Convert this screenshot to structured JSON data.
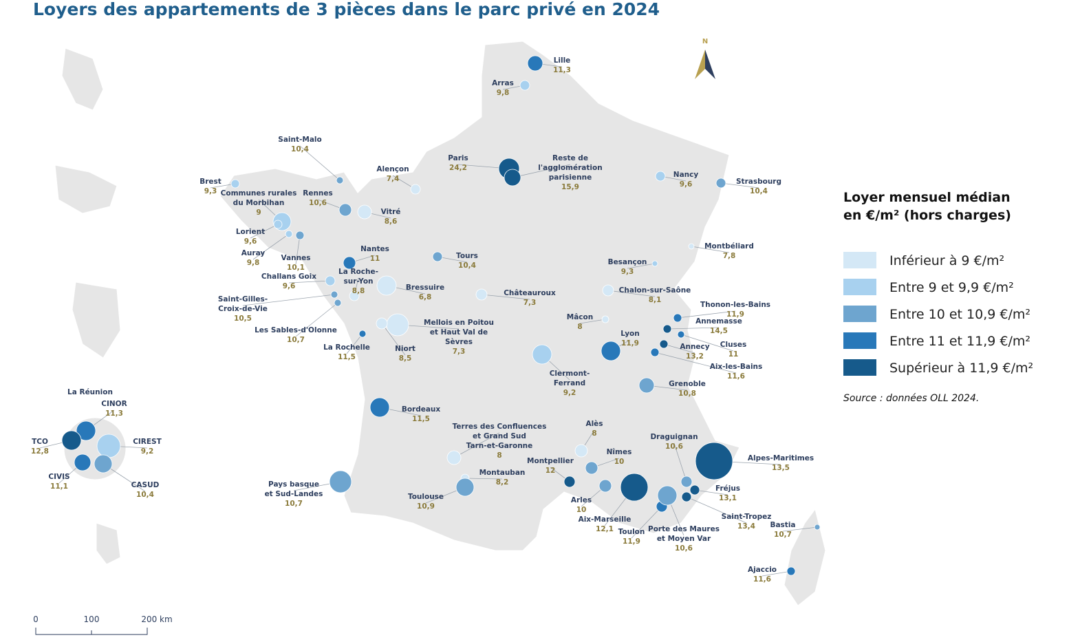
{
  "title": "Loyers des appartements de 3 pièces dans le parc privé en 2024",
  "legend": {
    "title": [
      "Loyer mensuel médian",
      "en €/m² (hors charges)"
    ],
    "items": [
      {
        "label": "Inférieur à 9 €/m²",
        "color": "#d4e8f6"
      },
      {
        "label": "Entre 9 et 9,9 €/m²",
        "color": "#a8d1ef"
      },
      {
        "label": "Entre 10 et 10,9 €/m²",
        "color": "#6ea5cf"
      },
      {
        "label": "Entre 11 et 11,9 €/m²",
        "color": "#2878b9"
      },
      {
        "label": "Supérieur à 11,9 €/m²",
        "color": "#165a8b"
      }
    ]
  },
  "source": "Source : données OLL 2024.",
  "north": "N",
  "scale": [
    "0",
    "100",
    "200 km"
  ],
  "reunion_title": "La Réunion",
  "places": [
    {
      "name": [
        "Lille"
      ],
      "value": "11,3",
      "class": 3
    },
    {
      "name": [
        "Arras"
      ],
      "value": "9,8",
      "class": 1
    },
    {
      "name": [
        "Saint-Malo"
      ],
      "value": "10,4",
      "class": 2
    },
    {
      "name": [
        "Alençon"
      ],
      "value": "7,4",
      "class": 0
    },
    {
      "name": [
        "Paris"
      ],
      "value": "24,2",
      "class": 4
    },
    {
      "name": [
        "Reste de",
        "l'agglomération",
        "parisienne"
      ],
      "value": "15,9",
      "class": 4
    },
    {
      "name": [
        "Nancy"
      ],
      "value": "9,6",
      "class": 1
    },
    {
      "name": [
        "Strasbourg"
      ],
      "value": "10,4",
      "class": 2
    },
    {
      "name": [
        "Brest"
      ],
      "value": "9,3",
      "class": 1
    },
    {
      "name": [
        "Communes rurales",
        "du Morbihan"
      ],
      "value": "9",
      "class": 1
    },
    {
      "name": [
        "Rennes"
      ],
      "value": "10,6",
      "class": 2
    },
    {
      "name": [
        "Vitré"
      ],
      "value": "8,6",
      "class": 0
    },
    {
      "name": [
        "Lorient"
      ],
      "value": "9,6",
      "class": 1
    },
    {
      "name": [
        "Auray"
      ],
      "value": "9,8",
      "class": 1
    },
    {
      "name": [
        "Vannes"
      ],
      "value": "10,1",
      "class": 2
    },
    {
      "name": [
        "Nantes"
      ],
      "value": "11",
      "class": 3
    },
    {
      "name": [
        "Tours"
      ],
      "value": "10,4",
      "class": 2
    },
    {
      "name": [
        "Montbéliard"
      ],
      "value": "7,8",
      "class": 0
    },
    {
      "name": [
        "Besançon"
      ],
      "value": "9,3",
      "class": 1
    },
    {
      "name": [
        "Challans Goix"
      ],
      "value": "9,6",
      "class": 1
    },
    {
      "name": [
        "La Roche-",
        "sur-Yon"
      ],
      "value": "8,8",
      "class": 0
    },
    {
      "name": [
        "Bressuire"
      ],
      "value": "6,8",
      "class": 0
    },
    {
      "name": [
        "Châteauroux"
      ],
      "value": "7,3",
      "class": 0
    },
    {
      "name": [
        "Chalon-sur-Saône"
      ],
      "value": "8,1",
      "class": 0
    },
    {
      "name": [
        "Saint-Gilles-",
        "Croix-de-Vie"
      ],
      "value": "10,5",
      "class": 2
    },
    {
      "name": [
        "Thonon-les-Bains"
      ],
      "value": "11,9",
      "class": 3
    },
    {
      "name": [
        "Mâcon"
      ],
      "value": "8",
      "class": 0
    },
    {
      "name": [
        "Mellois en Poitou",
        "et Haut Val de",
        "Sèvres"
      ],
      "value": "7,3",
      "class": 0
    },
    {
      "name": [
        "Annemasse"
      ],
      "value": "14,5",
      "class": 4
    },
    {
      "name": [
        "Les Sables-d'Olonne"
      ],
      "value": "10,7",
      "class": 2
    },
    {
      "name": [
        "Lyon"
      ],
      "value": "11,9",
      "class": 3
    },
    {
      "name": [
        "Cluses"
      ],
      "value": "11",
      "class": 3
    },
    {
      "name": [
        "Annecy"
      ],
      "value": "13,2",
      "class": 4
    },
    {
      "name": [
        "Niort"
      ],
      "value": "8,5",
      "class": 0
    },
    {
      "name": [
        "La Rochelle"
      ],
      "value": "11,5",
      "class": 3
    },
    {
      "name": [
        "Aix-les-Bains"
      ],
      "value": "11,6",
      "class": 3
    },
    {
      "name": [
        "Clermont-",
        "Ferrand"
      ],
      "value": "9,2",
      "class": 1
    },
    {
      "name": [
        "Grenoble"
      ],
      "value": "10,8",
      "class": 2
    },
    {
      "name": [
        "Bordeaux"
      ],
      "value": "11,5",
      "class": 3
    },
    {
      "name": [
        "Alès"
      ],
      "value": "8",
      "class": 0
    },
    {
      "name": [
        "Terres des Confluences",
        "et Grand Sud",
        "Tarn-et-Garonne"
      ],
      "value": "8",
      "class": 0
    },
    {
      "name": [
        "Draguignan"
      ],
      "value": "10,6",
      "class": 2
    },
    {
      "name": [
        "Nîmes"
      ],
      "value": "10",
      "class": 2
    },
    {
      "name": [
        "Alpes-Maritimes"
      ],
      "value": "13,5",
      "class": 4
    },
    {
      "name": [
        "Montpellier"
      ],
      "value": "12",
      "class": 4
    },
    {
      "name": [
        "Montauban"
      ],
      "value": "8,2",
      "class": 0
    },
    {
      "name": [
        "Pays basque",
        "et Sud-Landes"
      ],
      "value": "10,7",
      "class": 2
    },
    {
      "name": [
        "Fréjus"
      ],
      "value": "13,1",
      "class": 4
    },
    {
      "name": [
        "Toulouse"
      ],
      "value": "10,9",
      "class": 2
    },
    {
      "name": [
        "Arles"
      ],
      "value": "10",
      "class": 2
    },
    {
      "name": [
        "Aix-Marseille"
      ],
      "value": "12,1",
      "class": 4
    },
    {
      "name": [
        "Saint-Tropez"
      ],
      "value": "13,4",
      "class": 4
    },
    {
      "name": [
        "Toulon"
      ],
      "value": "11,9",
      "class": 3
    },
    {
      "name": [
        "Porte des Maures",
        "et Moyen Var"
      ],
      "value": "10,6",
      "class": 2
    },
    {
      "name": [
        "Bastia"
      ],
      "value": "10,7",
      "class": 2
    },
    {
      "name": [
        "Ajaccio"
      ],
      "value": "11,6",
      "class": 3
    },
    {
      "name": [
        "CINOR"
      ],
      "value": "11,3",
      "class": 3
    },
    {
      "name": [
        "CIREST"
      ],
      "value": "9,2",
      "class": 1
    },
    {
      "name": [
        "TCO"
      ],
      "value": "12,8",
      "class": 4
    },
    {
      "name": [
        "CIVIS"
      ],
      "value": "11,1",
      "class": 3
    },
    {
      "name": [
        "CASUD"
      ],
      "value": "10,4",
      "class": 2
    }
  ]
}
